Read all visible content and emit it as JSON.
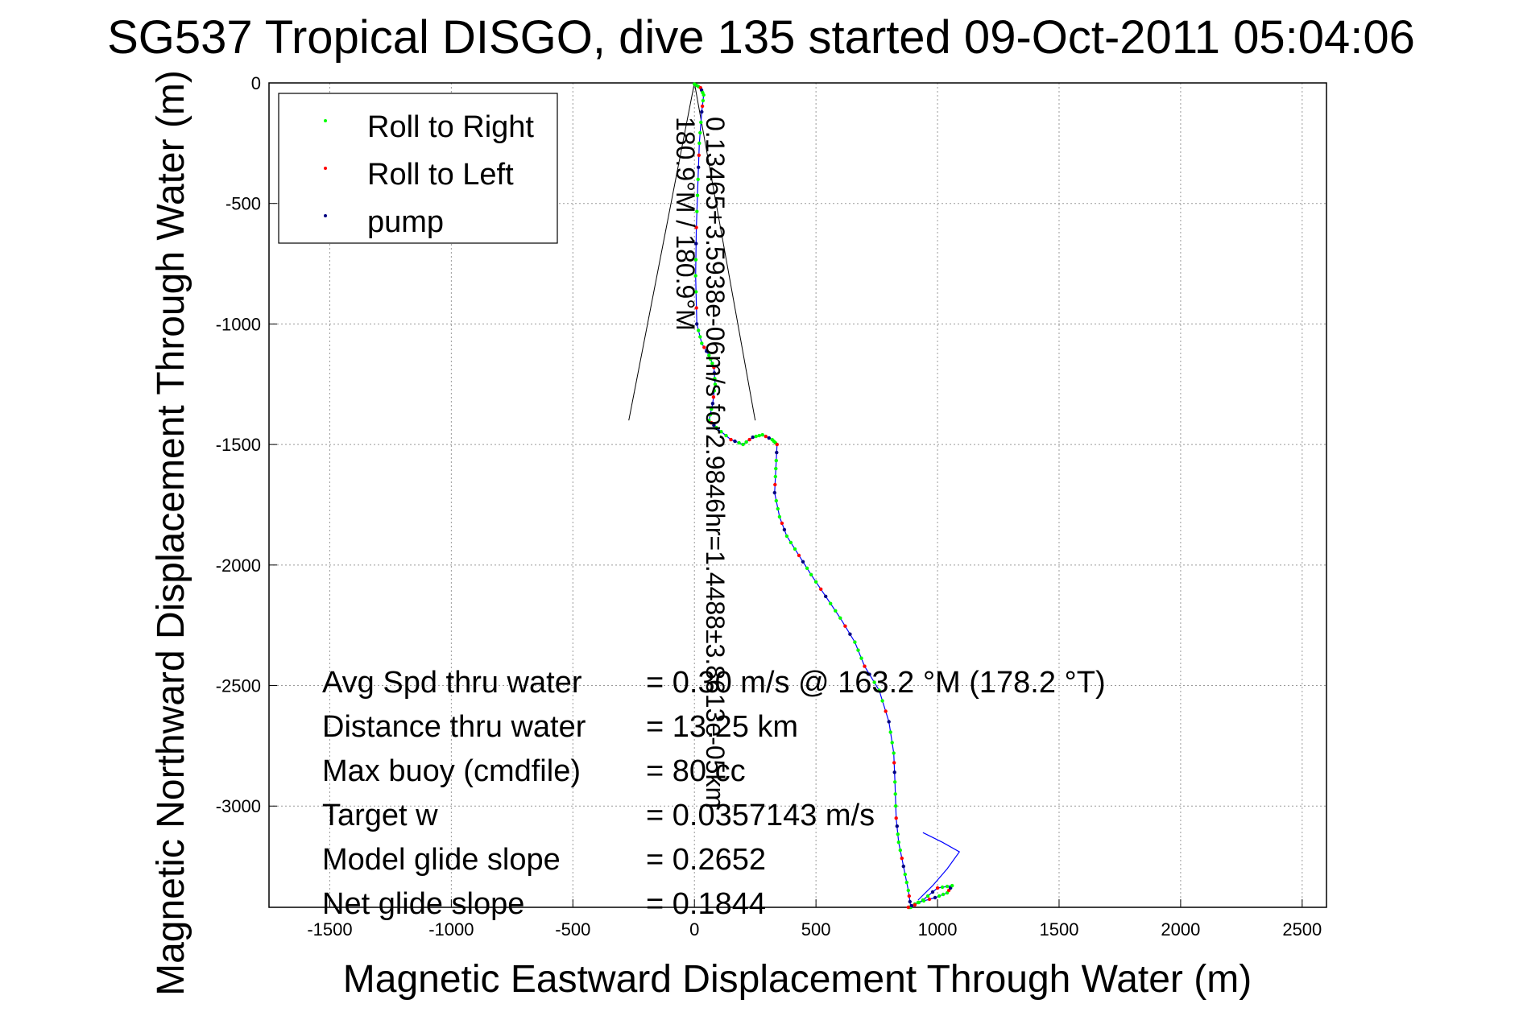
{
  "chart_data": {
    "type": "scatter",
    "title": "SG537 Tropical DISGO, dive 135 started 09-Oct-2011 05:04:06",
    "xlabel": "Magnetic Eastward Displacement Through Water (m)",
    "ylabel": "Magnetic Northward Displacement Through Water (m)",
    "xlim": [
      -1750,
      2600
    ],
    "ylim": [
      -3420,
      0
    ],
    "x_ticks": [
      -1500,
      -1000,
      -500,
      0,
      500,
      1000,
      1500,
      2000,
      2500
    ],
    "y_ticks": [
      0,
      -500,
      -1000,
      -1500,
      -2000,
      -2500,
      -3000
    ],
    "grid": true,
    "legend_position": "top-left",
    "legend": [
      {
        "label": "Roll to Right",
        "color": "#00ff00"
      },
      {
        "label": "Roll to Left",
        "color": "#ff0000"
      },
      {
        "label": "pump",
        "color": "#000080"
      }
    ],
    "track_color": "#0000ff",
    "track": [
      [
        0,
        -5
      ],
      [
        25,
        -20
      ],
      [
        38,
        -50
      ],
      [
        30,
        -120
      ],
      [
        20,
        -250
      ],
      [
        15,
        -400
      ],
      [
        8,
        -600
      ],
      [
        5,
        -800
      ],
      [
        10,
        -1000
      ],
      [
        30,
        -1080
      ],
      [
        60,
        -1130
      ],
      [
        80,
        -1180
      ],
      [
        85,
        -1250
      ],
      [
        75,
        -1330
      ],
      [
        60,
        -1400
      ],
      [
        90,
        -1430
      ],
      [
        150,
        -1480
      ],
      [
        200,
        -1500
      ],
      [
        240,
        -1470
      ],
      [
        280,
        -1460
      ],
      [
        320,
        -1480
      ],
      [
        340,
        -1500
      ],
      [
        335,
        -1600
      ],
      [
        330,
        -1700
      ],
      [
        350,
        -1800
      ],
      [
        380,
        -1880
      ],
      [
        430,
        -1960
      ],
      [
        480,
        -2040
      ],
      [
        540,
        -2130
      ],
      [
        600,
        -2220
      ],
      [
        660,
        -2320
      ],
      [
        700,
        -2420
      ],
      [
        760,
        -2520
      ],
      [
        800,
        -2650
      ],
      [
        820,
        -2780
      ],
      [
        825,
        -2900
      ],
      [
        830,
        -3050
      ],
      [
        840,
        -3150
      ],
      [
        860,
        -3250
      ],
      [
        880,
        -3350
      ],
      [
        890,
        -3420
      ]
    ],
    "surface_track": [
      [
        940,
        -3110
      ],
      [
        1020,
        -3150
      ],
      [
        1090,
        -3190
      ],
      [
        1040,
        -3260
      ],
      [
        980,
        -3330
      ],
      [
        920,
        -3390
      ]
    ],
    "bottom_loop": [
      [
        880,
        -3420
      ],
      [
        920,
        -3400
      ],
      [
        990,
        -3380
      ],
      [
        1040,
        -3360
      ],
      [
        1060,
        -3330
      ],
      [
        1000,
        -3340
      ],
      [
        940,
        -3390
      ],
      [
        890,
        -3420
      ]
    ],
    "current_vector": {
      "label": "0.13465+3.5938e-06m/s for2.9846hr=1.4488±3.8613e-05km",
      "angle_label": "180.9°M / 180.9°M",
      "tip_x": 0,
      "tip_y": 0,
      "left_x": -270,
      "left_y": -1400,
      "right_x": 250,
      "right_y": -1400
    },
    "stats": [
      {
        "name": "Avg Spd thru water",
        "value": "= 0.30 m/s @ 163.2 °M (178.2 °T)"
      },
      {
        "name": "Distance thru water",
        "value": "= 13.25 km"
      },
      {
        "name": "Max buoy (cmdfile)",
        "value": "= 80 cc"
      },
      {
        "name": "Target w",
        "value": "= 0.0357143 m/s"
      },
      {
        "name": "Model glide slope",
        "value": "= 0.2652"
      },
      {
        "name": "Net glide slope",
        "value": "= 0.1844"
      }
    ]
  }
}
